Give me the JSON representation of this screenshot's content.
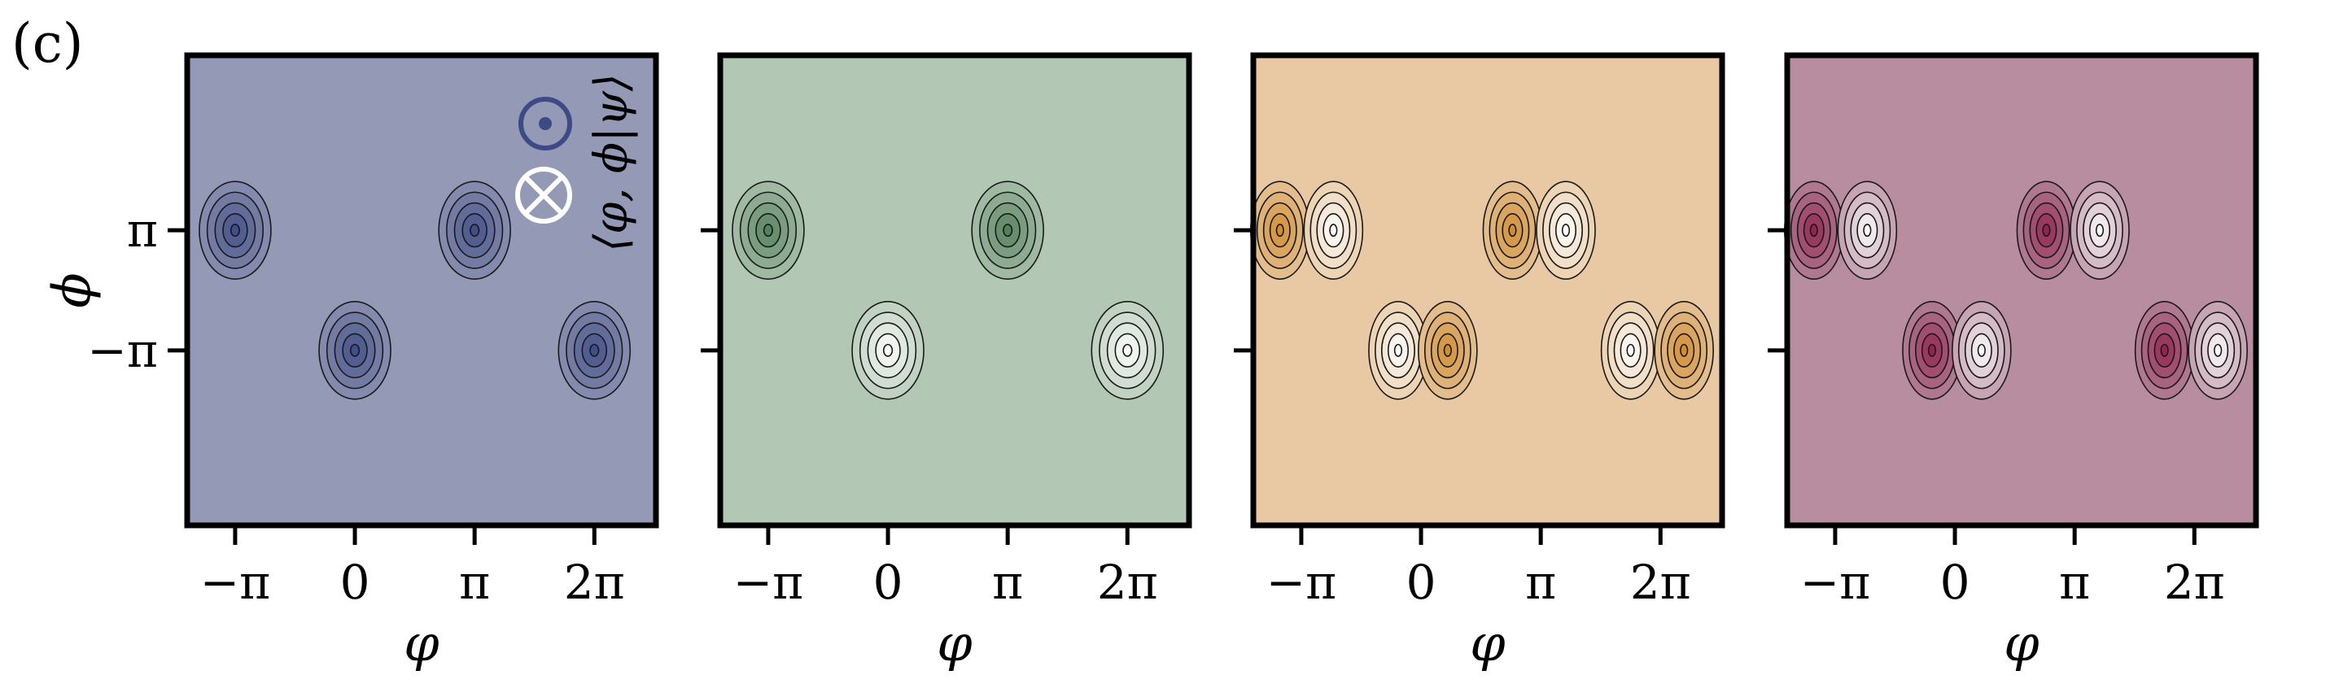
{
  "figure_label": "(c)",
  "colors": {
    "panel_backgrounds": [
      "#9499b6",
      "#b2c7b4",
      "#e8c9a3",
      "#b88d9f"
    ],
    "panel_dark": [
      "#3d4a85",
      "#4f7d58",
      "#cf8a2c",
      "#8f1f4a"
    ],
    "light": "#ffffff",
    "frame": "#000000"
  },
  "legend": {
    "dot_icon": "circled-dot-icon",
    "cross_icon": "circled-cross-icon",
    "label": "⟨φ, ϕ|ψ⟩",
    "dot_color": "#3d4a85",
    "cross_color": "#ffffff"
  },
  "chart_data": [
    {
      "type": "heatmap",
      "xlabel": "φ",
      "ylabel": "ϕ",
      "x_ticks": [
        -3.14159,
        0,
        3.14159,
        6.28319
      ],
      "x_tick_labels": [
        "−π",
        "0",
        "π",
        "2π"
      ],
      "y_ticks": [
        -3.14159,
        3.14159
      ],
      "y_tick_labels": [
        "−π",
        "π"
      ],
      "xlim": [
        -4.4,
        7.9
      ],
      "ylim": [
        -12.3,
        12.3
      ],
      "lobes": [
        {
          "x": -3.14159,
          "y": 3.14159,
          "sign": 1
        },
        {
          "x": 3.14159,
          "y": 3.14159,
          "sign": 1
        },
        {
          "x": 0,
          "y": -3.14159,
          "sign": 1
        },
        {
          "x": 6.28319,
          "y": -3.14159,
          "sign": 1
        }
      ]
    },
    {
      "type": "heatmap",
      "xlabel": "φ",
      "ylabel": "",
      "x_ticks": [
        -3.14159,
        0,
        3.14159,
        6.28319
      ],
      "x_tick_labels": [
        "−π",
        "0",
        "π",
        "2π"
      ],
      "y_ticks": [
        -3.14159,
        3.14159
      ],
      "y_tick_labels": [],
      "xlim": [
        -4.4,
        7.9
      ],
      "ylim": [
        -12.3,
        12.3
      ],
      "lobes": [
        {
          "x": -3.14159,
          "y": 3.14159,
          "sign": 1
        },
        {
          "x": 3.14159,
          "y": 3.14159,
          "sign": 1
        },
        {
          "x": 0,
          "y": -3.14159,
          "sign": -1
        },
        {
          "x": 6.28319,
          "y": -3.14159,
          "sign": -1
        }
      ]
    },
    {
      "type": "heatmap",
      "xlabel": "φ",
      "ylabel": "",
      "x_ticks": [
        -3.14159,
        0,
        3.14159,
        6.28319
      ],
      "x_tick_labels": [
        "−π",
        "0",
        "π",
        "2π"
      ],
      "y_ticks": [
        -3.14159,
        3.14159
      ],
      "y_tick_labels": [],
      "xlim": [
        -4.4,
        7.9
      ],
      "ylim": [
        -12.3,
        12.3
      ],
      "lobes": [
        {
          "x": -3.7,
          "y": 3.14159,
          "sign": 1
        },
        {
          "x": -2.3,
          "y": 3.14159,
          "sign": -1
        },
        {
          "x": 2.4,
          "y": 3.14159,
          "sign": 1
        },
        {
          "x": 3.8,
          "y": 3.14159,
          "sign": -1
        },
        {
          "x": -0.6,
          "y": -3.14159,
          "sign": -1
        },
        {
          "x": 0.7,
          "y": -3.14159,
          "sign": 1
        },
        {
          "x": 5.5,
          "y": -3.14159,
          "sign": -1
        },
        {
          "x": 6.9,
          "y": -3.14159,
          "sign": 1
        }
      ]
    },
    {
      "type": "heatmap",
      "xlabel": "φ",
      "ylabel": "",
      "x_ticks": [
        -3.14159,
        0,
        3.14159,
        6.28319
      ],
      "x_tick_labels": [
        "−π",
        "0",
        "π",
        "2π"
      ],
      "y_ticks": [
        -3.14159,
        3.14159
      ],
      "y_tick_labels": [],
      "xlim": [
        -4.4,
        7.9
      ],
      "ylim": [
        -12.3,
        12.3
      ],
      "lobes": [
        {
          "x": -3.7,
          "y": 3.14159,
          "sign": 1
        },
        {
          "x": -2.3,
          "y": 3.14159,
          "sign": -1
        },
        {
          "x": 2.4,
          "y": 3.14159,
          "sign": 1
        },
        {
          "x": 3.8,
          "y": 3.14159,
          "sign": -1
        },
        {
          "x": -0.6,
          "y": -3.14159,
          "sign": 1
        },
        {
          "x": 0.7,
          "y": -3.14159,
          "sign": -1
        },
        {
          "x": 5.5,
          "y": -3.14159,
          "sign": 1
        },
        {
          "x": 6.9,
          "y": -3.14159,
          "sign": -1
        }
      ]
    }
  ]
}
